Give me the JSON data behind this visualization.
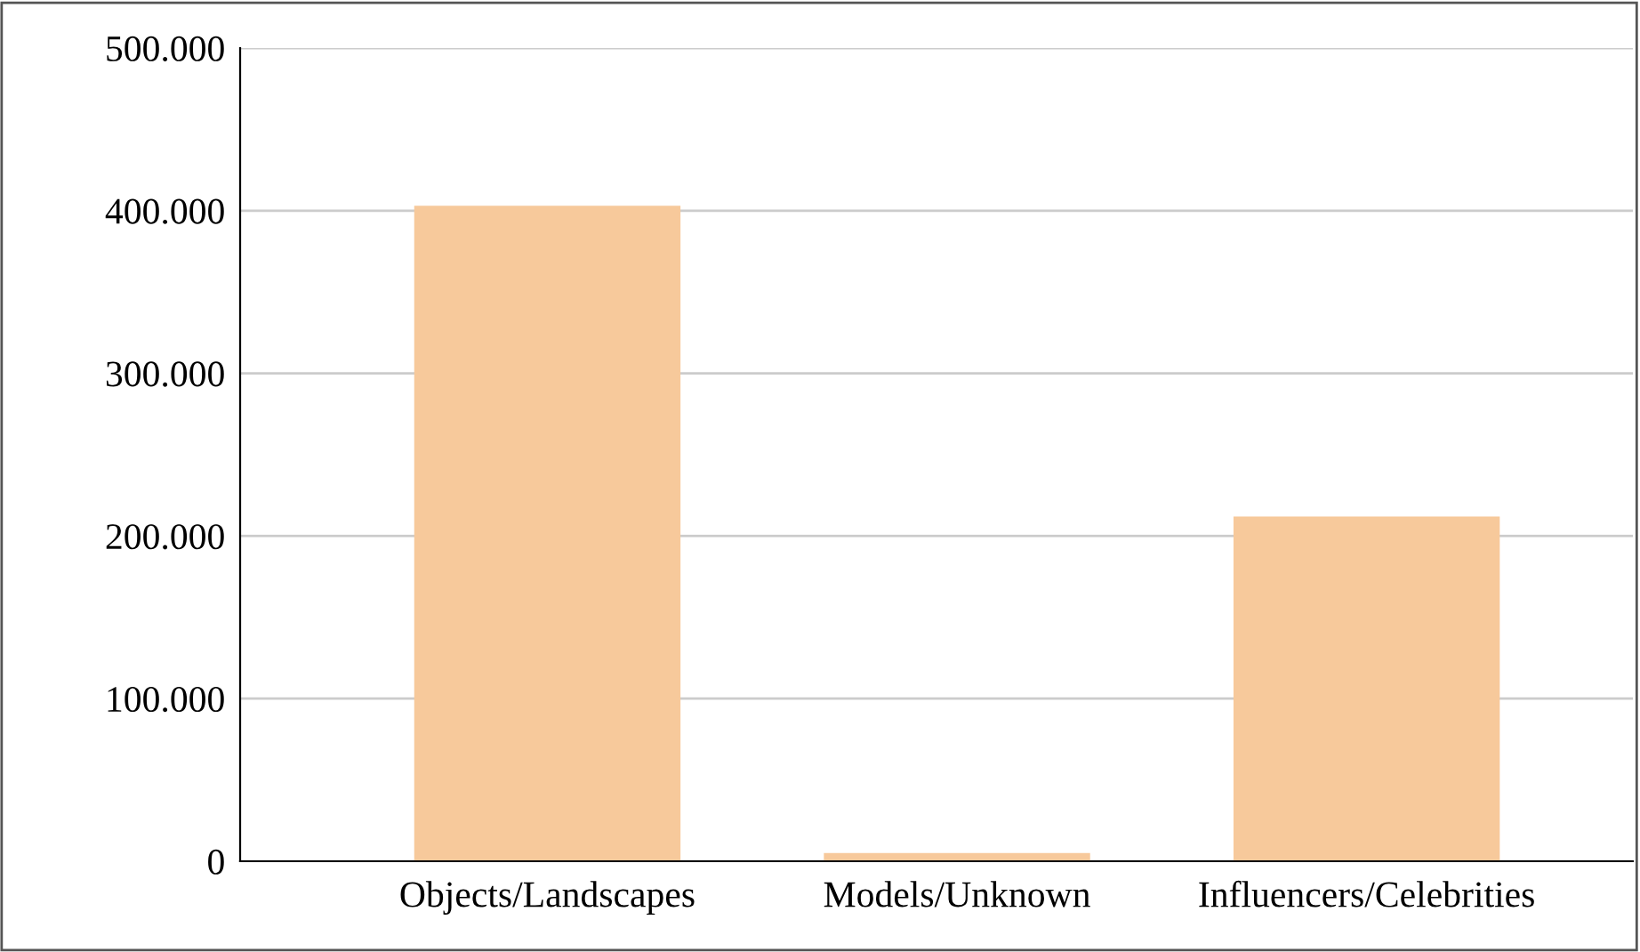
{
  "chart_data": {
    "type": "bar",
    "categories": [
      "Objects/Landscapes",
      "Models/Unknown",
      "Influencers/Celebrities"
    ],
    "values": [
      403000,
      5000,
      212000
    ],
    "color": "#f7c99b",
    "ylim": [
      0,
      500000
    ],
    "yticks": [
      {
        "value": 0,
        "label": "0"
      },
      {
        "value": 100000,
        "label": "100.000"
      },
      {
        "value": 200000,
        "label": "200.000"
      },
      {
        "value": 300000,
        "label": "300.000"
      },
      {
        "value": 400000,
        "label": "400.000"
      },
      {
        "value": 500000,
        "label": "500.000"
      }
    ],
    "grid": "y"
  }
}
